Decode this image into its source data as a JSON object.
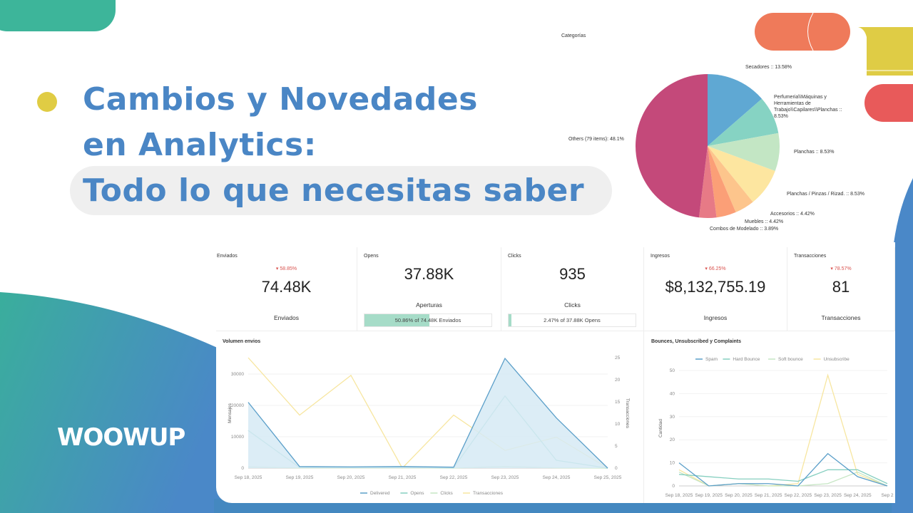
{
  "headline": {
    "line1": "Cambios y Novedades",
    "line2": "en Analytics:",
    "line3": "Todo lo que necesitas saber"
  },
  "brand": {
    "logo": "WOOWUP",
    "colors": {
      "title": "#4a86c5",
      "teal": "#3aae9c",
      "blue": "#4a88c8",
      "yellow": "#e0cc44",
      "orange": "#ef7a5a",
      "red": "#e85a5a"
    }
  },
  "kpis": [
    {
      "label": "Enviados",
      "delta": "▾ 58.85%",
      "value": "74.48K",
      "sub": "Enviados"
    },
    {
      "label": "Opens",
      "value": "37.88K",
      "sub": "Aperturas",
      "bar_text": "50.86% of 74.48K Enviados",
      "progress": 50.86
    },
    {
      "label": "Clicks",
      "value": "935",
      "sub": "Clicks",
      "bar_text": "2.47% of 37.88K Opens",
      "progress": 2.47
    },
    {
      "label": "Ingresos",
      "delta": "▾ 66.25%",
      "value": "$8,132,755.19",
      "sub": "Ingresos"
    },
    {
      "label": "Transacciones",
      "delta": "▾ 78.57%",
      "value": "81",
      "sub": "Transacciones"
    }
  ],
  "chart_data": [
    {
      "type": "pie",
      "title": "Categorías",
      "slices": [
        {
          "label": "Secadores :: 13.58%",
          "value": 13.58,
          "color": "#5fa8d3"
        },
        {
          "label": "Perfumeria\\\\Máquinas y Herramientas de Trabajo\\\\Capilares\\\\Planchas :: 8.53%",
          "value": 8.53,
          "color": "#86d3c3"
        },
        {
          "label": "Planchas :: 8.53%",
          "value": 8.53,
          "color": "#c3e6c4"
        },
        {
          "label": "Planchas / Pinzas / Rizad. :: 8.53%",
          "value": 8.53,
          "color": "#fde6a0"
        },
        {
          "label": "Accesorios :: 4.42%",
          "value": 4.42,
          "color": "#fdc58c"
        },
        {
          "label": "Muebles :: 4.42%",
          "value": 4.42,
          "color": "#fb9f77"
        },
        {
          "label": "Combos de Modelado :: 3.89%",
          "value": 3.89,
          "color": "#e77a86"
        },
        {
          "label": "Others (79 items): 48.1%",
          "value": 48.1,
          "color": "#c4497a"
        }
      ]
    },
    {
      "type": "line",
      "title": "Volumen envios",
      "ylabel": "Mensajes",
      "y2label": "Transacciones",
      "categories": [
        "Sep 18, 2025",
        "Sep 19, 2025",
        "Sep 20, 2025",
        "Sep 21, 2025",
        "Sep 22, 2025",
        "Sep 23, 2025",
        "Sep 24, 2025",
        "Sep 25, 2025"
      ],
      "ylim": [
        0,
        35000
      ],
      "yticks": [
        0,
        10000,
        20000,
        30000
      ],
      "y2lim": [
        0,
        25
      ],
      "y2ticks": [
        0,
        5,
        10,
        15,
        20,
        25
      ],
      "legend": "bottom",
      "series": [
        {
          "name": "Delivered",
          "axis": "left",
          "color": "#5b9fc9",
          "area": true,
          "values": [
            21000,
            500,
            400,
            500,
            300,
            35000,
            16000,
            0
          ]
        },
        {
          "name": "Opens",
          "axis": "left",
          "color": "#86cfc0",
          "values": [
            12000,
            200,
            200,
            200,
            100,
            23000,
            2500,
            0
          ]
        },
        {
          "name": "Clicks",
          "axis": "left",
          "color": "#c6e6c4",
          "values": [
            400,
            50,
            50,
            50,
            30,
            500,
            80,
            0
          ]
        },
        {
          "name": "Transacciones",
          "axis": "right",
          "color": "#f7e6a0",
          "values": [
            25,
            12,
            21,
            0,
            12,
            4,
            7,
            0
          ]
        }
      ]
    },
    {
      "type": "line",
      "title": "Bounces, Unsubscribed y Complaints",
      "ylabel": "Cantidad",
      "categories": [
        "Sep 18, 2025",
        "Sep 19, 2025",
        "Sep 20, 2025",
        "Sep 21, 2025",
        "Sep 22, 2025",
        "Sep 23, 2025",
        "Sep 24, 2025",
        "Sep 2"
      ],
      "ylim": [
        0,
        50
      ],
      "yticks": [
        0,
        10,
        20,
        30,
        40,
        50
      ],
      "legend": "top",
      "series": [
        {
          "name": "Spam",
          "color": "#5b9fc9",
          "values": [
            10,
            0,
            1,
            1,
            0,
            14,
            4,
            0
          ]
        },
        {
          "name": "Hard Bounce",
          "color": "#86cfc0",
          "values": [
            5,
            4,
            3,
            3,
            2,
            7,
            7,
            1
          ]
        },
        {
          "name": "Soft bounce",
          "color": "#c6e6c4",
          "values": [
            6,
            0,
            1,
            0,
            0,
            1,
            6,
            0
          ]
        },
        {
          "name": "Unsubscribe",
          "color": "#f7e6a0",
          "values": [
            7,
            0,
            1,
            0,
            1,
            48,
            5,
            0
          ]
        }
      ]
    }
  ]
}
